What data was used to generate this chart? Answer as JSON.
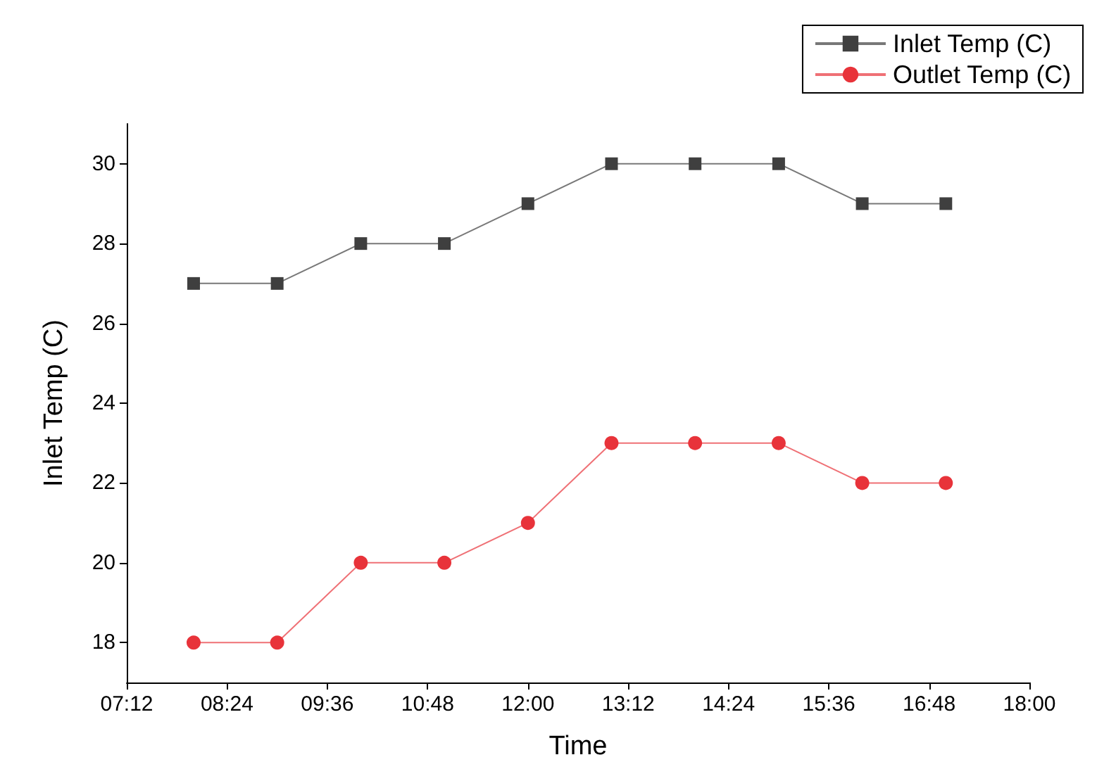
{
  "chart_data": {
    "type": "line",
    "xlabel": "Time",
    "ylabel": "Inlet Temp (C)",
    "x": [
      8,
      9,
      10,
      11,
      12,
      13,
      14,
      15,
      16,
      17
    ],
    "series": [
      {
        "name": "Inlet Temp (C)",
        "color": "#3f3f3f",
        "marker": "square",
        "values": [
          27,
          27,
          28,
          28,
          29,
          30,
          30,
          30,
          29,
          29
        ]
      },
      {
        "name": "Outlet Temp (C)",
        "color": "#e8333a",
        "marker": "circle",
        "values": [
          18,
          18,
          20,
          20,
          21,
          23,
          23,
          23,
          22,
          22
        ]
      }
    ],
    "xlim": [
      7.2,
      18
    ],
    "xticks": [
      {
        "value": 7.2,
        "label": "07:12"
      },
      {
        "value": 8.4,
        "label": "08:24"
      },
      {
        "value": 9.6,
        "label": "09:36"
      },
      {
        "value": 10.8,
        "label": "10:48"
      },
      {
        "value": 12,
        "label": "12:00"
      },
      {
        "value": 13.2,
        "label": "13:12"
      },
      {
        "value": 14.4,
        "label": "14:24"
      },
      {
        "value": 15.6,
        "label": "15:36"
      },
      {
        "value": 16.8,
        "label": "16:48"
      },
      {
        "value": 18,
        "label": "18:00"
      }
    ],
    "ylim": [
      17,
      31
    ],
    "yticks": [
      18,
      20,
      22,
      24,
      26,
      28,
      30
    ],
    "grid": false,
    "legend": "top right",
    "line_style": "solid"
  }
}
